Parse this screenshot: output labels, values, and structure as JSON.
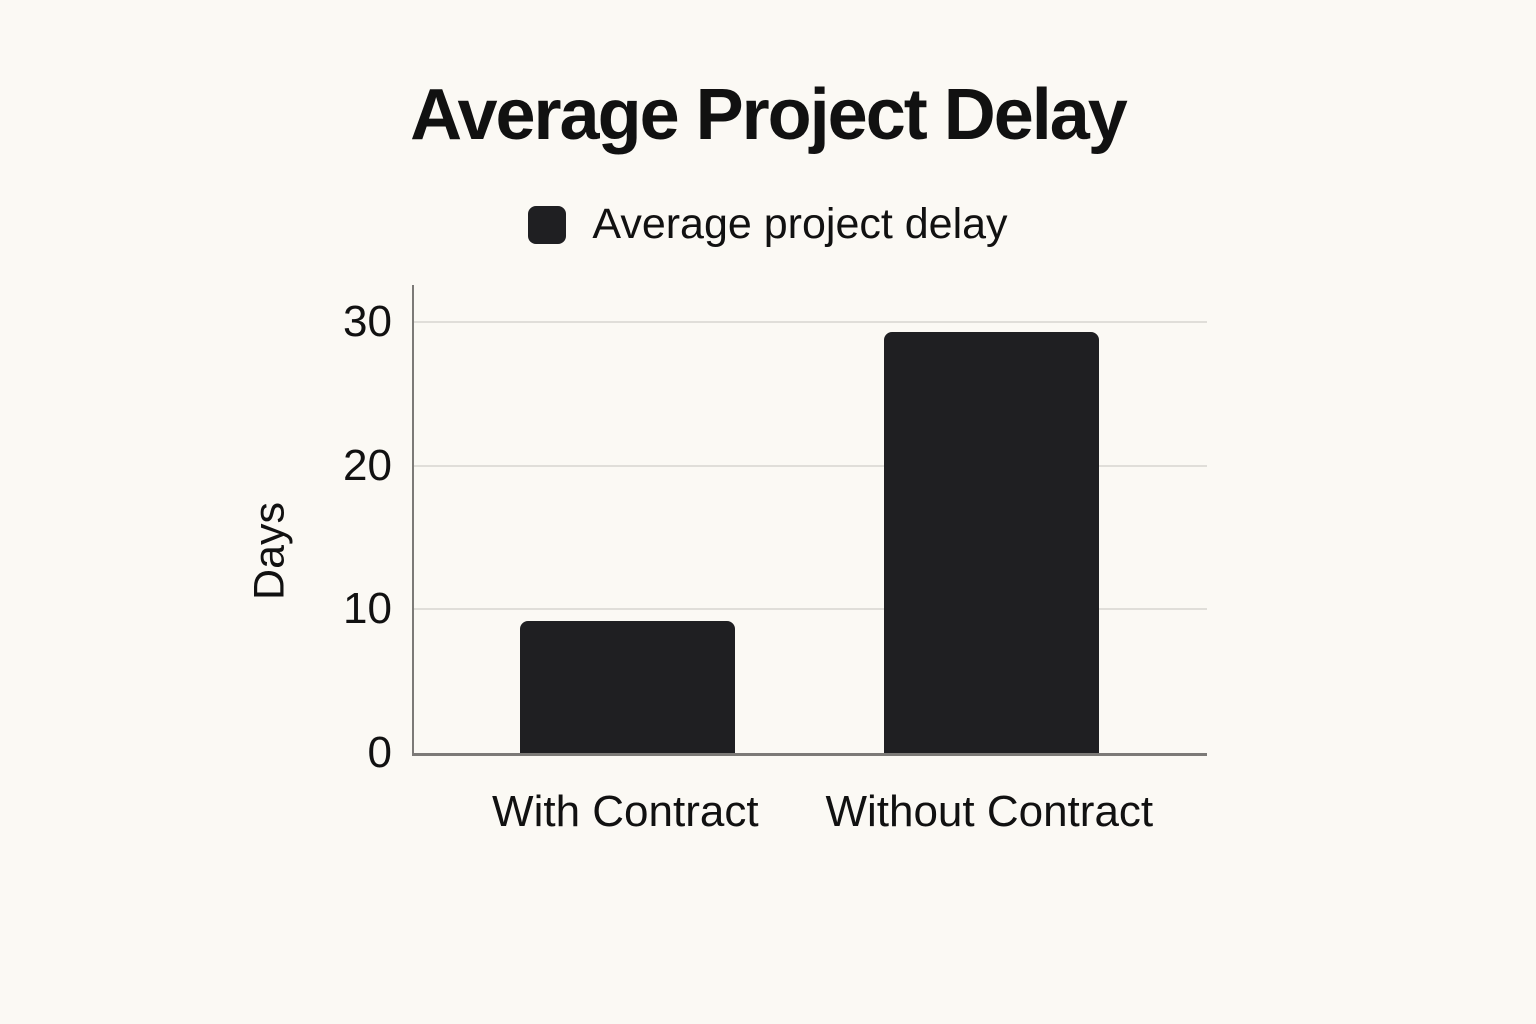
{
  "page": {
    "background_color": "#fbf9f4",
    "text_color": "#111111"
  },
  "chart_data": {
    "type": "bar",
    "title": "Average Project Delay",
    "legend": [
      {
        "label": "Average project delay",
        "color": "#1f1f22"
      }
    ],
    "legend_position": "top",
    "categories": [
      "With Contract",
      "Without Contract"
    ],
    "values": [
      9.2,
      29.3
    ],
    "xlabel": "",
    "ylabel": "Days",
    "ylim": [
      0,
      32.6
    ],
    "yticks": [
      0,
      10,
      20,
      30
    ],
    "grid": true,
    "colors": {
      "bar": "#1f1f22",
      "axis_line": "#7c7a77",
      "gridline": "#e0ded9",
      "text": "#111111"
    }
  }
}
